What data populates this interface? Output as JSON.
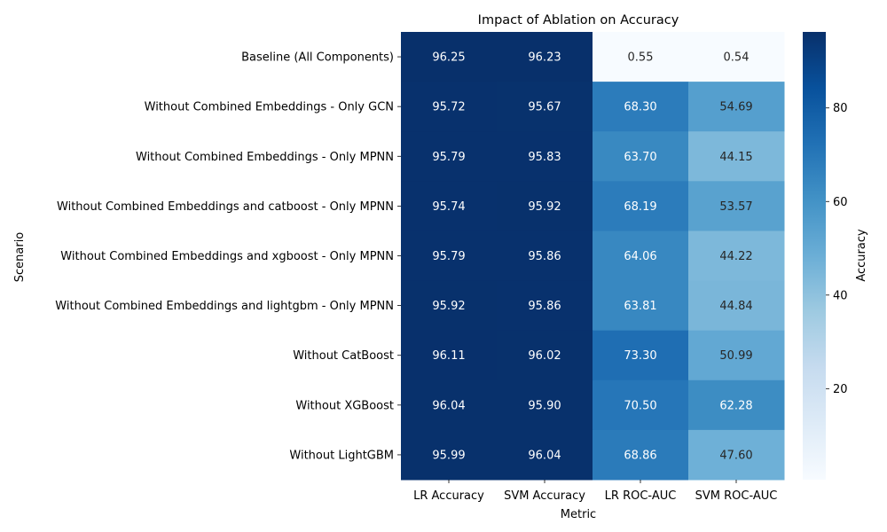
{
  "chart_data": {
    "type": "heatmap",
    "title": "Impact of Ablation on Accuracy",
    "xlabel": "Metric",
    "ylabel": "Scenario",
    "columns": [
      "LR Accuracy",
      "SVM Accuracy",
      "LR ROC-AUC",
      "SVM ROC-AUC"
    ],
    "rows": [
      "Baseline (All Components)",
      "Without Combined Embeddings - Only GCN",
      "Without Combined Embeddings - Only MPNN",
      "Without Combined Embeddings and catboost - Only MPNN",
      "Without Combined Embeddings and xgboost - Only MPNN",
      "Without Combined Embeddings and lightgbm - Only MPNN",
      "Without CatBoost",
      "Without XGBoost",
      "Without LightGBM"
    ],
    "values": [
      [
        96.25,
        96.23,
        0.55,
        0.54
      ],
      [
        95.72,
        95.67,
        68.3,
        54.69
      ],
      [
        95.79,
        95.83,
        63.7,
        44.15
      ],
      [
        95.74,
        95.92,
        68.19,
        53.57
      ],
      [
        95.79,
        95.86,
        64.06,
        44.22
      ],
      [
        95.92,
        95.86,
        63.81,
        44.84
      ],
      [
        96.11,
        96.02,
        73.3,
        50.99
      ],
      [
        96.04,
        95.9,
        70.5,
        62.28
      ],
      [
        95.99,
        96.04,
        68.86,
        47.6
      ]
    ],
    "colormap": "Blues",
    "colorbar": {
      "label": "Accuracy",
      "range": [
        0.54,
        96.25
      ],
      "ticks": [
        20,
        40,
        60,
        80
      ]
    },
    "value_format": "0.00"
  }
}
